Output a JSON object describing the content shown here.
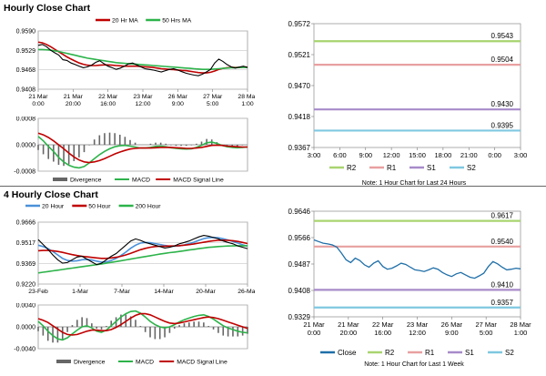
{
  "sections": {
    "hourly_title": "Hourly Close Chart",
    "four_hourly_title": "4 Hourly Close Chart"
  },
  "notes": {
    "hourly": "Note: 1 Hour Chart for Last 24 Hours",
    "four_hourly": "Note: 1 Hour Chart for Last 1 Week"
  },
  "colors": {
    "price": "#000000",
    "ma_red": "#c00000",
    "ma_green": "#2db34a",
    "ma_blue": "#4a90d9",
    "r2": "#a8d46f",
    "r1": "#e8a0a0",
    "s1": "#a78bc9",
    "s2": "#7fc8e0",
    "close": "#1f6fa8",
    "divergence": "#666666"
  },
  "chart_data": [
    {
      "id": "hourly_price",
      "type": "line",
      "legend": [
        "20 Hr MA",
        "50 Hrs MA"
      ],
      "x_labels": [
        [
          "21 Mar",
          "0:00"
        ],
        [
          "21 Mar",
          "20:00"
        ],
        [
          "22 Mar",
          "16:00"
        ],
        [
          "23 Mar",
          "12:00"
        ],
        [
          "26 Mar",
          "9:00"
        ],
        [
          "27 Mar",
          "5:00"
        ],
        [
          "28 Mar",
          "1:00"
        ]
      ],
      "y_ticks": [
        "0.9590",
        "0.9529",
        "0.9468",
        "0.9408"
      ],
      "ylim": [
        0.9408,
        0.959
      ],
      "series": [
        {
          "name": "Price",
          "values": [
            0.9545,
            0.9548,
            0.9541,
            0.953,
            0.9522,
            0.9515,
            0.95,
            0.9498,
            0.949,
            0.9485,
            0.948,
            0.9475,
            0.9478,
            0.9483,
            0.9492,
            0.9497,
            0.9488,
            0.948,
            0.9475,
            0.947,
            0.9474,
            0.948,
            0.9487,
            0.949,
            0.9484,
            0.9478,
            0.9472,
            0.947,
            0.9468,
            0.9465,
            0.9462,
            0.9466,
            0.947,
            0.9472,
            0.9468,
            0.9463,
            0.9458,
            0.9455,
            0.9452,
            0.945,
            0.9455,
            0.9462,
            0.947,
            0.949,
            0.9502,
            0.9495,
            0.9485,
            0.9478,
            0.9474,
            0.9477,
            0.948,
            0.9476
          ]
        },
        {
          "name": "20 Hr MA",
          "values": [
            0.9555,
            0.9553,
            0.9548,
            0.9541,
            0.9533,
            0.9525,
            0.9517,
            0.9509,
            0.9502,
            0.9496,
            0.949,
            0.9486,
            0.9483,
            0.9482,
            0.9482,
            0.9483,
            0.9484,
            0.9484,
            0.9483,
            0.9482,
            0.9481,
            0.948,
            0.948,
            0.948,
            0.948,
            0.9479,
            0.9478,
            0.9477,
            0.9476,
            0.9474,
            0.9472,
            0.9471,
            0.947,
            0.9469,
            0.9468,
            0.9467,
            0.9466,
            0.9464,
            0.9462,
            0.946,
            0.9459,
            0.9459,
            0.9461,
            0.9465,
            0.947,
            0.9473,
            0.9475,
            0.9476,
            0.9476,
            0.9476,
            0.9477,
            0.9477
          ]
        },
        {
          "name": "50 Hrs MA",
          "values": [
            0.9532,
            0.9532,
            0.9531,
            0.953,
            0.9528,
            0.9526,
            0.9523,
            0.952,
            0.9517,
            0.9514,
            0.9511,
            0.9508,
            0.9505,
            0.9503,
            0.9501,
            0.9499,
            0.9497,
            0.9495,
            0.9493,
            0.9491,
            0.949,
            0.9489,
            0.9488,
            0.9487,
            0.9486,
            0.9485,
            0.9484,
            0.9483,
            0.9482,
            0.9481,
            0.948,
            0.9479,
            0.9478,
            0.9477,
            0.9476,
            0.9475,
            0.9474,
            0.9473,
            0.9472,
            0.9471,
            0.947,
            0.947,
            0.947,
            0.9471,
            0.9472,
            0.9473,
            0.9474,
            0.9475,
            0.9475,
            0.9476,
            0.9476,
            0.9476
          ]
        }
      ]
    },
    {
      "id": "hourly_macd",
      "type": "line",
      "legend": [
        "Divergence",
        "MACD",
        "MACD Signal Line"
      ],
      "y_ticks": [
        "0.0008",
        "0.0000",
        "-0.0008"
      ],
      "ylim": [
        -0.0008,
        0.0008
      ],
      "series": [
        {
          "name": "MACD",
          "values": [
            0.00025,
            0.00012,
            -5e-05,
            -0.0002,
            -0.00038,
            -0.00052,
            -0.00062,
            -0.00068,
            -0.0007,
            -0.00066,
            -0.00055,
            -0.00042,
            -0.0003,
            -0.0002,
            -0.00012,
            -6e-05,
            -3e-05,
            -2e-05,
            -4e-05,
            -7e-05,
            -0.0001,
            -0.0001,
            -8e-05,
            -5e-05,
            -4e-05,
            -6e-05,
            -9e-05,
            -0.00011,
            -0.00012,
            -0.00013,
            -0.00012,
            -8e-05,
            -2e-05,
            6e-05,
            8e-05,
            4e-05,
            -2e-05,
            -6e-05,
            -8e-05,
            -9e-05,
            -8e-05,
            -7e-05
          ]
        },
        {
          "name": "MACD Signal Line",
          "values": [
            0.00035,
            0.0003,
            0.00022,
            0.00012,
            0.0,
            -0.00012,
            -0.00025,
            -0.00037,
            -0.00046,
            -0.00052,
            -0.00054,
            -0.00052,
            -0.00048,
            -0.00042,
            -0.00035,
            -0.00028,
            -0.00022,
            -0.00017,
            -0.00013,
            -0.00011,
            -0.0001,
            -0.0001,
            -0.0001,
            -9e-05,
            -8e-05,
            -8e-05,
            -8e-05,
            -9e-05,
            -0.0001,
            -0.00011,
            -0.00011,
            -0.0001,
            -8e-05,
            -5e-05,
            -2e-05,
            -1e-05,
            -2e-05,
            -4e-05,
            -5e-05,
            -6e-05,
            -7e-05,
            -7e-05
          ]
        }
      ]
    },
    {
      "id": "hourly_levels",
      "type": "line",
      "x_labels": [
        "3:00",
        "6:00",
        "9:00",
        "12:00",
        "15:00",
        "18:00",
        "21:00",
        "0:00",
        "3:00"
      ],
      "y_ticks": [
        "0.9572",
        "0.9521",
        "0.9470",
        "0.9418",
        "0.9367"
      ],
      "ylim": [
        0.9367,
        0.9572
      ],
      "legend": [
        "R2",
        "R1",
        "S1",
        "S2"
      ],
      "levels": [
        {
          "name": "R2",
          "value": 0.9543,
          "label": "0.9543"
        },
        {
          "name": "R1",
          "value": 0.9504,
          "label": "0.9504"
        },
        {
          "name": "S1",
          "value": 0.943,
          "label": "0.9430"
        },
        {
          "name": "S2",
          "value": 0.9395,
          "label": "0.9395"
        }
      ]
    },
    {
      "id": "four_hourly_price",
      "type": "line",
      "legend": [
        "20 Hour",
        "50 Hour",
        "200 Hour"
      ],
      "x_labels": [
        "23-Feb",
        "1-Mar",
        "7-Mar",
        "14-Mar",
        "20-Mar",
        "26-Mar"
      ],
      "y_ticks": [
        "0.9666",
        "0.9517",
        "0.9369",
        "0.9220"
      ],
      "ylim": [
        0.922,
        0.9666
      ],
      "series": [
        {
          "name": "Price",
          "values": [
            0.954,
            0.9505,
            0.947,
            0.943,
            0.9395,
            0.937,
            0.9375,
            0.9395,
            0.9415,
            0.942,
            0.94,
            0.938,
            0.936,
            0.937,
            0.9395,
            0.942,
            0.944,
            0.947,
            0.95,
            0.953,
            0.9545,
            0.9535,
            0.952,
            0.951,
            0.95,
            0.949,
            0.948,
            0.9485,
            0.9495,
            0.951,
            0.952,
            0.953,
            0.9545,
            0.956,
            0.957,
            0.9565,
            0.9555,
            0.9545,
            0.953,
            0.952,
            0.951,
            0.9495,
            0.9485,
            0.9475
          ]
        },
        {
          "name": "20 Hour",
          "values": [
            0.95,
            0.949,
            0.9475,
            0.9455,
            0.943,
            0.9405,
            0.939,
            0.9385,
            0.9388,
            0.9395,
            0.9398,
            0.9393,
            0.9385,
            0.9378,
            0.938,
            0.939,
            0.9405,
            0.9425,
            0.945,
            0.9478,
            0.95,
            0.9515,
            0.952,
            0.9518,
            0.9512,
            0.9505,
            0.9498,
            0.9493,
            0.9492,
            0.9495,
            0.9502,
            0.9512,
            0.9522,
            0.9535,
            0.9547,
            0.9554,
            0.9556,
            0.9553,
            0.9546,
            0.9537,
            0.9527,
            0.9515,
            0.9503,
            0.9492
          ]
        },
        {
          "name": "50 Hour",
          "values": [
            0.946,
            0.9462,
            0.9462,
            0.946,
            0.9455,
            0.9448,
            0.944,
            0.9432,
            0.9425,
            0.942,
            0.9416,
            0.9412,
            0.9408,
            0.9405,
            0.9405,
            0.9408,
            0.9413,
            0.942,
            0.943,
            0.9442,
            0.9455,
            0.9467,
            0.9477,
            0.9485,
            0.949,
            0.9492,
            0.9493,
            0.9494,
            0.9495,
            0.9497,
            0.95,
            0.9504,
            0.9509,
            0.9515,
            0.9521,
            0.9527,
            0.9532,
            0.9535,
            0.9536,
            0.9535,
            0.9532,
            0.9527,
            0.952,
            0.9512
          ]
        },
        {
          "name": "200 Hour",
          "values": [
            0.93,
            0.9305,
            0.931,
            0.9315,
            0.932,
            0.9325,
            0.933,
            0.9335,
            0.934,
            0.9345,
            0.935,
            0.9355,
            0.936,
            0.9365,
            0.937,
            0.9376,
            0.9382,
            0.9388,
            0.9394,
            0.94,
            0.9406,
            0.9412,
            0.9418,
            0.9424,
            0.943,
            0.9436,
            0.9441,
            0.9446,
            0.945,
            0.9455,
            0.946,
            0.9465,
            0.947,
            0.9475,
            0.948,
            0.9484,
            0.9487,
            0.949,
            0.9492,
            0.9494,
            0.9495,
            0.9496,
            0.9496,
            0.9496
          ]
        }
      ]
    },
    {
      "id": "four_hourly_macd",
      "type": "line",
      "legend": [
        "Divergence",
        "MACD",
        "MACD Signal Line"
      ],
      "y_ticks": [
        "0.0040",
        "0.0000",
        "-0.0040"
      ],
      "ylim": [
        -0.004,
        0.004
      ],
      "series": [
        {
          "name": "MACD",
          "values": [
            0.001,
            0.0002,
            -0.0008,
            -0.0016,
            -0.0022,
            -0.0024,
            -0.002,
            -0.0013,
            -0.0006,
            0.0,
            0.0002,
            -0.0002,
            -0.0008,
            -0.001,
            -0.0006,
            0.0002,
            0.001,
            0.0018,
            0.0024,
            0.0028,
            0.0029,
            0.0025,
            0.0018,
            0.001,
            0.0004,
            0.0,
            -0.0002,
            0.0,
            0.0004,
            0.0009,
            0.0013,
            0.0016,
            0.0019,
            0.0021,
            0.0022,
            0.0019,
            0.0014,
            0.0008,
            0.0002,
            -0.0002,
            -0.0005,
            -0.0008,
            -0.001,
            -0.0011
          ]
        },
        {
          "name": "MACD Signal Line",
          "values": [
            0.0015,
            0.0012,
            0.0008,
            0.0002,
            -0.0004,
            -0.001,
            -0.0014,
            -0.0015,
            -0.0014,
            -0.0011,
            -0.0008,
            -0.0006,
            -0.0006,
            -0.0007,
            -0.0007,
            -0.0005,
            -0.0001,
            0.0004,
            0.001,
            0.0016,
            0.0021,
            0.0024,
            0.0024,
            0.0022,
            0.0018,
            0.0014,
            0.001,
            0.0007,
            0.0006,
            0.0007,
            0.0009,
            0.0011,
            0.0013,
            0.0015,
            0.0017,
            0.0018,
            0.0017,
            0.0015,
            0.0012,
            0.0009,
            0.0006,
            0.0003,
            0.0,
            -0.0003
          ]
        }
      ]
    },
    {
      "id": "four_hourly_levels",
      "type": "line",
      "x_labels": [
        [
          "21 Mar",
          "0:00"
        ],
        [
          "21 Mar",
          "20:00"
        ],
        [
          "22 Mar",
          "16:00"
        ],
        [
          "23 Mar",
          "12:00"
        ],
        [
          "26 Mar",
          "9:00"
        ],
        [
          "27 Mar",
          "5:00"
        ],
        [
          "28 Mar",
          "1:00"
        ]
      ],
      "y_ticks": [
        "0.9646",
        "0.9566",
        "0.9487",
        "0.9408",
        "0.9329"
      ],
      "ylim": [
        0.9329,
        0.9646
      ],
      "legend": [
        "Close",
        "R2",
        "R1",
        "S1",
        "S2"
      ],
      "levels": [
        {
          "name": "R2",
          "value": 0.9617,
          "label": "0.9617"
        },
        {
          "name": "R1",
          "value": 0.954,
          "label": "0.9540"
        },
        {
          "name": "S1",
          "value": 0.941,
          "label": "0.9410"
        },
        {
          "name": "S2",
          "value": 0.9357,
          "label": "0.9357"
        }
      ],
      "series": [
        {
          "name": "Close",
          "values": [
            0.956,
            0.9555,
            0.955,
            0.9548,
            0.9545,
            0.9538,
            0.952,
            0.95,
            0.9492,
            0.9505,
            0.9498,
            0.9485,
            0.9478,
            0.949,
            0.9497,
            0.948,
            0.9472,
            0.9475,
            0.9482,
            0.949,
            0.9486,
            0.9478,
            0.947,
            0.9468,
            0.9465,
            0.947,
            0.9476,
            0.9472,
            0.9462,
            0.9455,
            0.945,
            0.9458,
            0.9462,
            0.9455,
            0.9448,
            0.9445,
            0.9452,
            0.946,
            0.948,
            0.9495,
            0.9488,
            0.9478,
            0.947,
            0.9472,
            0.9475,
            0.9473
          ]
        }
      ]
    }
  ]
}
